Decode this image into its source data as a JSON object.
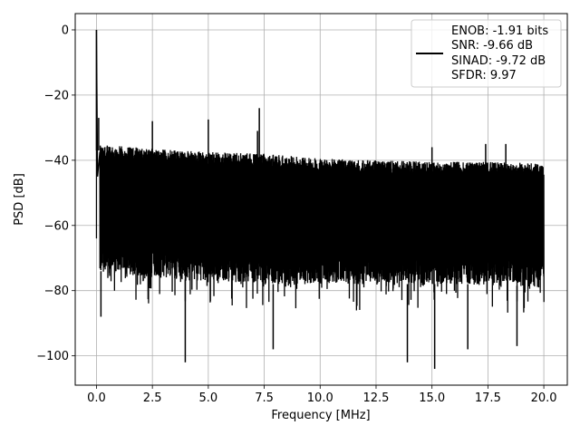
{
  "chart_data": {
    "type": "line",
    "title": "",
    "xlabel": "Frequency [MHz]",
    "ylabel": "PSD [dB]",
    "xlim": [
      -0.95,
      21.05
    ],
    "ylim": [
      -109,
      5
    ],
    "grid": true,
    "xticks": [
      0,
      2.5,
      5,
      7.5,
      10,
      12.5,
      15,
      17.5,
      20
    ],
    "xtick_labels": [
      "0.0",
      "2.5",
      "5.0",
      "7.5",
      "10.0",
      "12.5",
      "15.0",
      "17.5",
      "20.0"
    ],
    "yticks": [
      0,
      -20,
      -40,
      -60,
      -80,
      -100
    ],
    "ytick_labels": [
      "0",
      "−20",
      "−40",
      "−60",
      "−80",
      "−100"
    ],
    "legend": {
      "placement": "top-right",
      "entries": [
        "ENOB: -1.91 bits",
        "SNR: -9.66 dB",
        "SINAD: -9.72 dB",
        "SFDR: 9.97"
      ]
    },
    "series": [
      {
        "color": "#000000",
        "noise_floor": {
          "x": [
            0.15,
            2.5,
            5.0,
            7.5,
            10.0,
            12.5,
            15.0,
            17.5,
            20.0
          ],
          "top": [
            -35,
            -36.5,
            -37.5,
            -38,
            -39.5,
            -40,
            -40.5,
            -40.5,
            -41
          ],
          "bottom": [
            -80,
            -82,
            -83,
            -84,
            -84,
            -84,
            -84,
            -84,
            -85
          ]
        },
        "peaks": [
          {
            "x": 0.0,
            "y": 0
          },
          {
            "x": 0.1,
            "y": -27
          },
          {
            "x": 2.5,
            "y": -28
          },
          {
            "x": 5.0,
            "y": -27.5
          },
          {
            "x": 7.28,
            "y": -24
          },
          {
            "x": 7.2,
            "y": -31
          },
          {
            "x": 15.0,
            "y": -36
          },
          {
            "x": 17.4,
            "y": -35
          },
          {
            "x": 18.3,
            "y": -35
          }
        ],
        "dips": [
          {
            "x": 0.2,
            "y": -88
          },
          {
            "x": 3.97,
            "y": -102
          },
          {
            "x": 7.9,
            "y": -98
          },
          {
            "x": 13.9,
            "y": -102
          },
          {
            "x": 15.12,
            "y": -104
          },
          {
            "x": 16.6,
            "y": -98
          },
          {
            "x": 18.8,
            "y": -97
          }
        ]
      }
    ]
  }
}
